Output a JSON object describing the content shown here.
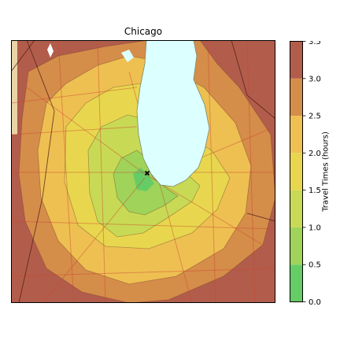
{
  "title": "Chicago",
  "colorbar": {
    "label": "Travel Times (hours)",
    "ticks": [
      "0.0",
      "0.5",
      "1.0",
      "1.5",
      "2.0",
      "2.5",
      "3.0",
      "3.5"
    ],
    "bands": [
      {
        "range": [
          0.0,
          0.5
        ],
        "color": "#66cc66"
      },
      {
        "range": [
          0.5,
          1.0
        ],
        "color": "#9fd35a"
      },
      {
        "range": [
          1.0,
          1.5
        ],
        "color": "#c8da55"
      },
      {
        "range": [
          1.5,
          2.0
        ],
        "color": "#e8d74e"
      },
      {
        "range": [
          2.0,
          2.5
        ],
        "color": "#eec052"
      },
      {
        "range": [
          2.5,
          3.0
        ],
        "color": "#d58d4a"
      },
      {
        "range": [
          3.0,
          3.5
        ],
        "color": "#b25d4b"
      }
    ]
  },
  "map": {
    "water_color": "#dcffff",
    "origin_marker": "x-marker"
  }
}
